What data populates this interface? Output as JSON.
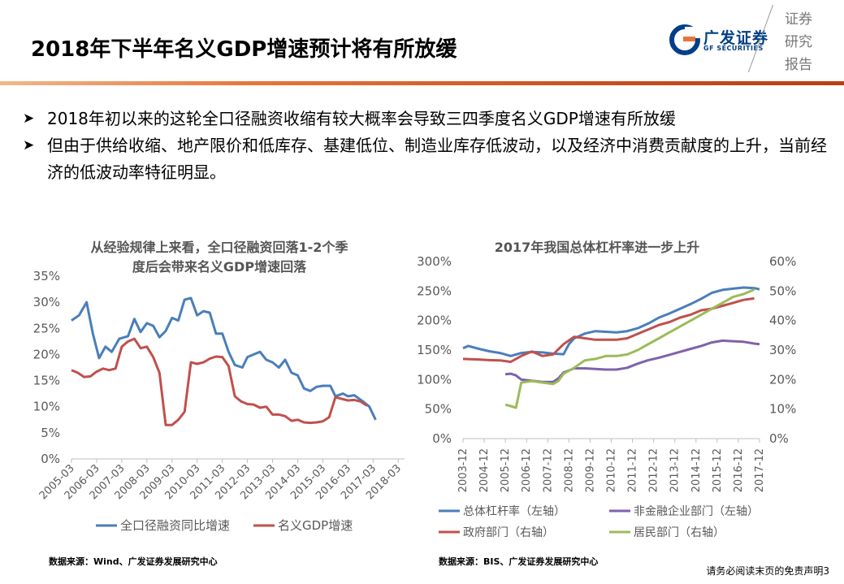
{
  "header": {
    "title": "2018年下半年名义GDP增速预计将有所放缓",
    "logo_cn": "广发证券",
    "logo_en": "GF SECURITIES",
    "stamp": [
      "证券",
      "研究",
      "报告"
    ],
    "accent_color": "#e8743a",
    "brand_color": "#003f87"
  },
  "bullets": [
    {
      "icon": "arrow-bullet-icon",
      "text": "2018年初以来的这轮全口径融资收缩有较大概率会导致三四季度名义GDP增速有所放缓"
    },
    {
      "icon": "arrow-bullet-icon",
      "text": "但由于供给收缩、地产限价和低库存、基建低位、制造业库存低波动，以及经济中消费贡献度的上升，当前经济的低波动率特征明显。"
    }
  ],
  "chart_data": [
    {
      "type": "line",
      "title": "从经验规律上来看，全口径融资回落1-2个季度后会带来名义GDP增速回落",
      "title_lines": [
        "从经验规律上来看，全口径融资回落1-2个季",
        "度后会带来名义GDP增速回落"
      ],
      "x_tick_labels": [
        "2005-03",
        "2006-03",
        "2007-03",
        "2008-03",
        "2009-03",
        "2010-03",
        "2011-03",
        "2012-03",
        "2013-03",
        "2014-03",
        "2015-03",
        "2016-03",
        "2017-03",
        "2018-03"
      ],
      "y_tick_labels": [
        "0%",
        "5%",
        "10%",
        "15%",
        "20%",
        "25%",
        "30%",
        "35%"
      ],
      "ylim": [
        0,
        35
      ],
      "x_start": 2005.0,
      "x_end": 2018.25,
      "legend_position": "bottom",
      "series": [
        {
          "name": "全口径融资同比增速",
          "color": "#4a7ebb",
          "points": [
            [
              2005.0,
              26.5
            ],
            [
              2005.3,
              27.5
            ],
            [
              2005.6,
              30
            ],
            [
              2005.85,
              24
            ],
            [
              2006.1,
              19.3
            ],
            [
              2006.35,
              21.5
            ],
            [
              2006.6,
              20.5
            ],
            [
              2006.9,
              23
            ],
            [
              2007.25,
              23.5
            ],
            [
              2007.5,
              26.8
            ],
            [
              2007.75,
              24.3
            ],
            [
              2008.0,
              26
            ],
            [
              2008.25,
              25.5
            ],
            [
              2008.5,
              23.3
            ],
            [
              2008.75,
              24.5
            ],
            [
              2009.0,
              27
            ],
            [
              2009.25,
              26.5
            ],
            [
              2009.5,
              30.5
            ],
            [
              2009.75,
              30.8
            ],
            [
              2010.0,
              27.5
            ],
            [
              2010.25,
              28.3
            ],
            [
              2010.5,
              28
            ],
            [
              2010.75,
              24
            ],
            [
              2011.0,
              24
            ],
            [
              2011.25,
              20.5
            ],
            [
              2011.5,
              18
            ],
            [
              2011.8,
              17.5
            ],
            [
              2012.0,
              19.5
            ],
            [
              2012.25,
              20
            ],
            [
              2012.5,
              20.5
            ],
            [
              2012.75,
              19
            ],
            [
              2013.0,
              18.5
            ],
            [
              2013.25,
              17.5
            ],
            [
              2013.5,
              19
            ],
            [
              2013.75,
              16.5
            ],
            [
              2014.0,
              16
            ],
            [
              2014.25,
              13.5
            ],
            [
              2014.5,
              13
            ],
            [
              2014.75,
              13.8
            ],
            [
              2015.0,
              14
            ],
            [
              2015.3,
              14
            ],
            [
              2015.5,
              12
            ],
            [
              2015.8,
              12.5
            ],
            [
              2016.0,
              12
            ],
            [
              2016.25,
              12.2
            ],
            [
              2016.6,
              11
            ],
            [
              2016.85,
              10
            ],
            [
              2017.1,
              7.5
            ]
          ]
        },
        {
          "name": "名义GDP增速",
          "color": "#c0504d",
          "points": [
            [
              2005.0,
              17
            ],
            [
              2005.25,
              16.5
            ],
            [
              2005.5,
              15.7
            ],
            [
              2005.75,
              15.8
            ],
            [
              2006.0,
              16.7
            ],
            [
              2006.25,
              17.3
            ],
            [
              2006.5,
              17
            ],
            [
              2006.75,
              17.3
            ],
            [
              2007.0,
              21.5
            ],
            [
              2007.25,
              22.5
            ],
            [
              2007.5,
              23
            ],
            [
              2007.75,
              21.2
            ],
            [
              2008.0,
              21.5
            ],
            [
              2008.25,
              19.5
            ],
            [
              2008.5,
              16.5
            ],
            [
              2008.75,
              6.5
            ],
            [
              2009.0,
              6.5
            ],
            [
              2009.25,
              7.5
            ],
            [
              2009.5,
              9
            ],
            [
              2009.75,
              18.5
            ],
            [
              2010.0,
              18.2
            ],
            [
              2010.25,
              18.5
            ],
            [
              2010.5,
              19.2
            ],
            [
              2010.75,
              19.6
            ],
            [
              2011.0,
              19.5
            ],
            [
              2011.25,
              17.8
            ],
            [
              2011.5,
              12
            ],
            [
              2011.75,
              11
            ],
            [
              2012.0,
              10.5
            ],
            [
              2012.25,
              10.4
            ],
            [
              2012.5,
              9.8
            ],
            [
              2012.75,
              10
            ],
            [
              2013.0,
              8.5
            ],
            [
              2013.25,
              8.5
            ],
            [
              2013.5,
              8.2
            ],
            [
              2013.75,
              7.3
            ],
            [
              2014.0,
              7.5
            ],
            [
              2014.25,
              7
            ],
            [
              2014.5,
              6.9
            ],
            [
              2014.75,
              7
            ],
            [
              2015.0,
              7.2
            ],
            [
              2015.25,
              8
            ],
            [
              2015.5,
              11.8
            ],
            [
              2015.75,
              11.5
            ],
            [
              2016.0,
              11.2
            ],
            [
              2016.25,
              11.3
            ],
            [
              2016.5,
              11
            ],
            [
              2016.75,
              10.2
            ]
          ]
        }
      ]
    },
    {
      "type": "line",
      "title": "2017年我国总体杠杆率进一步上升",
      "x_tick_labels": [
        "2003-12",
        "2004-12",
        "2005-12",
        "2006-12",
        "2007-12",
        "2008-12",
        "2009-12",
        "2010-12",
        "2011-12",
        "2012-12",
        "2013-12",
        "2014-12",
        "2015-12",
        "2016-12",
        "2017-12"
      ],
      "y_left_tick_labels": [
        "0%",
        "50%",
        "100%",
        "150%",
        "200%",
        "250%",
        "300%"
      ],
      "y_right_tick_labels": [
        "0%",
        "10%",
        "20%",
        "30%",
        "40%",
        "50%",
        "60%"
      ],
      "ylim_left": [
        0,
        300
      ],
      "ylim_right": [
        0,
        60
      ],
      "x_start": 2003.75,
      "x_end": 2017.75,
      "legend_position": "bottom",
      "series": [
        {
          "name": "总体杠杆率（左轴）",
          "axis": "left",
          "color": "#4a7ebb",
          "points": [
            [
              2003.75,
              153
            ],
            [
              2004.0,
              157
            ],
            [
              2004.5,
              152
            ],
            [
              2005.0,
              148
            ],
            [
              2005.5,
              145
            ],
            [
              2006.0,
              140
            ],
            [
              2006.5,
              145
            ],
            [
              2007.0,
              147
            ],
            [
              2007.5,
              146
            ],
            [
              2008.0,
              144
            ],
            [
              2008.5,
              143
            ],
            [
              2008.75,
              160
            ],
            [
              2009.0,
              170
            ],
            [
              2009.5,
              178
            ],
            [
              2010.0,
              182
            ],
            [
              2010.5,
              181
            ],
            [
              2011.0,
              180
            ],
            [
              2011.5,
              182
            ],
            [
              2012.0,
              187
            ],
            [
              2012.5,
              195
            ],
            [
              2013.0,
              205
            ],
            [
              2013.5,
              212
            ],
            [
              2014.0,
              220
            ],
            [
              2014.5,
              228
            ],
            [
              2015.0,
              237
            ],
            [
              2015.5,
              247
            ],
            [
              2016.0,
              252
            ],
            [
              2016.5,
              254
            ],
            [
              2017.0,
              256
            ],
            [
              2017.5,
              255
            ],
            [
              2017.75,
              253
            ]
          ]
        },
        {
          "name": "非金融企业部门（左轴）",
          "axis": "left",
          "color": "#7f62a9",
          "points": [
            [
              2005.75,
              109
            ],
            [
              2006.0,
              110
            ],
            [
              2006.25,
              107
            ],
            [
              2006.5,
              100
            ],
            [
              2007.0,
              98
            ],
            [
              2007.5,
              96
            ],
            [
              2008.0,
              96
            ],
            [
              2008.25,
              102
            ],
            [
              2008.5,
              112
            ],
            [
              2009.0,
              119
            ],
            [
              2009.5,
              119
            ],
            [
              2010.0,
              118
            ],
            [
              2010.5,
              117
            ],
            [
              2011.0,
              117
            ],
            [
              2011.5,
              120
            ],
            [
              2012.0,
              127
            ],
            [
              2012.5,
              133
            ],
            [
              2013.0,
              137
            ],
            [
              2013.5,
              142
            ],
            [
              2014.0,
              147
            ],
            [
              2014.5,
              152
            ],
            [
              2015.0,
              157
            ],
            [
              2015.5,
              163
            ],
            [
              2016.0,
              166
            ],
            [
              2016.5,
              165
            ],
            [
              2017.0,
              164
            ],
            [
              2017.5,
              161
            ],
            [
              2017.75,
              160
            ]
          ]
        },
        {
          "name": "政府部门（右轴）",
          "axis": "right",
          "color": "#c0504d",
          "points": [
            [
              2003.75,
              27
            ],
            [
              2004.5,
              26.8
            ],
            [
              2005.0,
              26.6
            ],
            [
              2005.5,
              26.5
            ],
            [
              2006.0,
              26
            ],
            [
              2006.5,
              28
            ],
            [
              2007.0,
              29.5
            ],
            [
              2007.5,
              28
            ],
            [
              2008.0,
              28.5
            ],
            [
              2008.5,
              32
            ],
            [
              2009.0,
              34.5
            ],
            [
              2009.5,
              34
            ],
            [
              2010.0,
              33.5
            ],
            [
              2010.5,
              33.5
            ],
            [
              2011.0,
              33.5
            ],
            [
              2011.5,
              34
            ],
            [
              2012.0,
              35.5
            ],
            [
              2012.5,
              37
            ],
            [
              2013.0,
              38.5
            ],
            [
              2013.5,
              39.5
            ],
            [
              2014.0,
              41
            ],
            [
              2014.5,
              42
            ],
            [
              2015.0,
              43.5
            ],
            [
              2015.5,
              44
            ],
            [
              2016.0,
              45
            ],
            [
              2016.5,
              46
            ],
            [
              2017.0,
              47
            ],
            [
              2017.5,
              47.5
            ]
          ]
        },
        {
          "name": "居民部门（右轴）",
          "axis": "right",
          "color": "#9bbb59",
          "points": [
            [
              2005.75,
              11.5
            ],
            [
              2006.0,
              11
            ],
            [
              2006.25,
              10.5
            ],
            [
              2006.5,
              19
            ],
            [
              2007.0,
              19.5
            ],
            [
              2007.5,
              19
            ],
            [
              2008.0,
              18.5
            ],
            [
              2008.25,
              19.5
            ],
            [
              2008.5,
              22
            ],
            [
              2009.0,
              24
            ],
            [
              2009.5,
              26.5
            ],
            [
              2010.0,
              27
            ],
            [
              2010.5,
              28
            ],
            [
              2011.0,
              28
            ],
            [
              2011.5,
              28.5
            ],
            [
              2012.0,
              30
            ],
            [
              2012.5,
              32
            ],
            [
              2013.0,
              34
            ],
            [
              2013.5,
              36
            ],
            [
              2014.0,
              38
            ],
            [
              2014.5,
              40
            ],
            [
              2015.0,
              42
            ],
            [
              2015.5,
              44
            ],
            [
              2016.0,
              46
            ],
            [
              2016.5,
              48
            ],
            [
              2017.0,
              49
            ],
            [
              2017.5,
              50.5
            ]
          ]
        }
      ]
    }
  ],
  "sources": [
    "数据来源：Wind、广发证券发展研究中心",
    "数据来源：BIS、广发证券发展研究中心"
  ],
  "footer": {
    "text": "请务必阅读末页的免责声明",
    "page": "3"
  }
}
